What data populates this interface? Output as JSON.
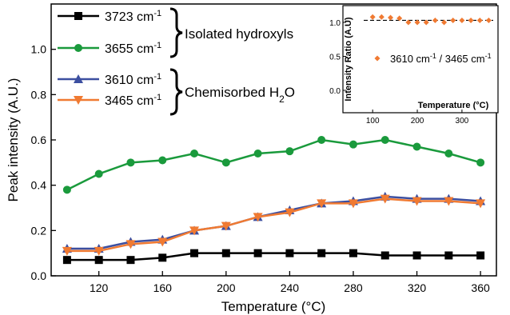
{
  "chart_data": [
    {
      "type": "line",
      "xlabel": "Temperature (°C)",
      "ylabel": "Peak intensity (A.U.)",
      "xlim": [
        90,
        370
      ],
      "ylim": [
        0.0,
        1.2
      ],
      "xticks": [
        120,
        160,
        200,
        240,
        280,
        320,
        360
      ],
      "yticks": [
        0.0,
        0.2,
        0.4,
        0.6,
        0.8,
        1.0
      ],
      "ytick_labels": [
        "0.0",
        "0.2",
        "0.4",
        "0.6",
        "0.8",
        "1.0"
      ],
      "grid": false,
      "legend_position": "top-left",
      "x": [
        100,
        120,
        140,
        160,
        180,
        200,
        220,
        240,
        260,
        280,
        300,
        320,
        340,
        360
      ],
      "series": [
        {
          "name": "3723 cm-1",
          "label_main": "3723 cm",
          "label_sup": "-1",
          "color": "#000000",
          "marker": "square",
          "values": [
            0.07,
            0.07,
            0.07,
            0.08,
            0.1,
            0.1,
            0.1,
            0.1,
            0.1,
            0.1,
            0.09,
            0.09,
            0.09,
            0.09
          ]
        },
        {
          "name": "3655 cm-1",
          "label_main": "3655 cm",
          "label_sup": "-1",
          "color": "#1a9a3c",
          "marker": "circle",
          "values": [
            0.38,
            0.45,
            0.5,
            0.51,
            0.54,
            0.5,
            0.54,
            0.55,
            0.6,
            0.58,
            0.6,
            0.57,
            0.54,
            0.5
          ]
        },
        {
          "name": "3610 cm-1",
          "label_main": "3610 cm",
          "label_sup": "-1",
          "color": "#3c4fa0",
          "marker": "triangle-up",
          "values": [
            0.12,
            0.12,
            0.15,
            0.16,
            0.2,
            0.22,
            0.26,
            0.29,
            0.32,
            0.33,
            0.35,
            0.34,
            0.34,
            0.33
          ]
        },
        {
          "name": "3465 cm-1",
          "label_main": "3465 cm",
          "label_sup": "-1",
          "color": "#f07a32",
          "marker": "triangle-down",
          "values": [
            0.11,
            0.11,
            0.14,
            0.15,
            0.2,
            0.22,
            0.26,
            0.28,
            0.32,
            0.32,
            0.34,
            0.33,
            0.33,
            0.32
          ]
        }
      ],
      "groups": [
        {
          "label_main": "Isolated hydroxyls",
          "label_sub": "",
          "label_tail": ""
        },
        {
          "label_main": "Chemisorbed H",
          "label_sub": "2",
          "label_tail": "O"
        }
      ]
    },
    {
      "type": "scatter",
      "position": "inset top-right",
      "xlabel": "Temperature (°C)",
      "ylabel": "Intensity Ratio (A.U)",
      "xlim": [
        80,
        370
      ],
      "ylim": [
        0.0,
        1.2
      ],
      "xticks": [
        100,
        200,
        300
      ],
      "yticks": [
        0.0,
        0.5,
        1.0
      ],
      "ytick_labels": [
        "0.0",
        "0.5",
        "1.0"
      ],
      "reference_line": 1.03,
      "series": [
        {
          "name": "3610 cm-1 / 3465 cm-1",
          "label_a": "3610 cm",
          "label_a_sup": "-1",
          "label_sep": " / ",
          "label_b": "3465 cm",
          "label_b_sup": "-1",
          "color": "#f07a32",
          "marker": "diamond",
          "x": [
            100,
            120,
            140,
            160,
            180,
            200,
            220,
            240,
            260,
            280,
            300,
            320,
            340,
            360
          ],
          "values": [
            1.08,
            1.08,
            1.07,
            1.06,
            1.0,
            1.0,
            1.0,
            1.03,
            1.0,
            1.03,
            1.03,
            1.03,
            1.03,
            1.03
          ]
        }
      ]
    }
  ]
}
